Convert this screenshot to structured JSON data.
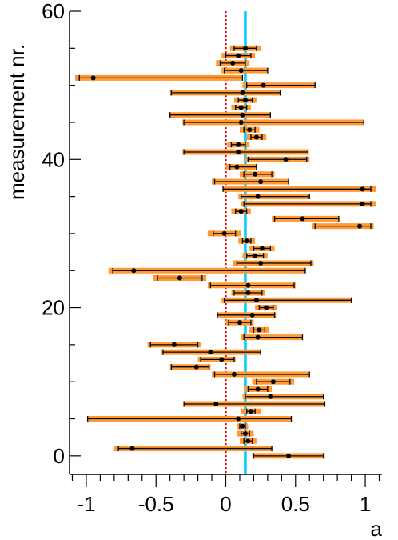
{
  "chart_data": {
    "type": "scatter",
    "title": "",
    "xlabel": "a",
    "ylabel": "measurement nr.",
    "xlim": [
      -1.12,
      1.12
    ],
    "ylim": [
      -2.5,
      60
    ],
    "x_ticks": [
      -1,
      -0.5,
      0,
      0.5,
      1
    ],
    "x_tick_labels": [
      "-1",
      "-0.5",
      "0",
      "0.5",
      "1"
    ],
    "y_ticks": [
      0,
      20,
      40,
      60
    ],
    "y_tick_labels": [
      "0",
      "20",
      "40",
      "60"
    ],
    "grid": false,
    "legend": "none",
    "reference_lines": [
      {
        "x": 0,
        "style": "dotted",
        "color": "#e00000"
      },
      {
        "x": 0.14,
        "width_data": 0.02,
        "color": "#00ccff"
      }
    ],
    "colors": {
      "stat_error": "#000000",
      "syst_error": "#ff9933",
      "marker": "#000000"
    },
    "measurements": [
      {
        "n": 0,
        "y": 0.45,
        "stat_lo": 0.25,
        "stat_hi": 0.25,
        "syst_lo": 0.26,
        "syst_hi": 0.26
      },
      {
        "n": 1,
        "y": -0.67,
        "stat_lo": 0.1,
        "stat_hi": 1.0,
        "syst_lo": 0.13,
        "syst_hi": 1.0
      },
      {
        "n": 2,
        "y": 0.16,
        "stat_lo": 0.03,
        "stat_hi": 0.03,
        "syst_lo": 0.06,
        "syst_hi": 0.06
      },
      {
        "n": 3,
        "y": 0.14,
        "stat_lo": 0.03,
        "stat_hi": 0.03,
        "syst_lo": 0.06,
        "syst_hi": 0.06
      },
      {
        "n": 4,
        "y": 0.12,
        "stat_lo": 0.02,
        "stat_hi": 0.02,
        "syst_lo": 0.04,
        "syst_hi": 0.04
      },
      {
        "n": 5,
        "y": 0.09,
        "stat_lo": 1.08,
        "stat_hi": 0.38,
        "syst_lo": 1.08,
        "syst_hi": 0.38
      },
      {
        "n": 6,
        "y": 0.18,
        "stat_lo": 0.03,
        "stat_hi": 0.03,
        "syst_lo": 0.07,
        "syst_hi": 0.07
      },
      {
        "n": 7,
        "y": -0.07,
        "stat_lo": 0.23,
        "stat_hi": 0.78,
        "syst_lo": 0.23,
        "syst_hi": 0.78
      },
      {
        "n": 8,
        "y": 0.32,
        "stat_lo": 0.18,
        "stat_hi": 0.38,
        "syst_lo": 0.2,
        "syst_hi": 0.38
      },
      {
        "n": 9,
        "y": 0.23,
        "stat_lo": 0.07,
        "stat_hi": 0.07,
        "syst_lo": 0.1,
        "syst_hi": 0.1
      },
      {
        "n": 10,
        "y": 0.34,
        "stat_lo": 0.12,
        "stat_hi": 0.12,
        "syst_lo": 0.15,
        "syst_hi": 0.15
      },
      {
        "n": 11,
        "y": 0.06,
        "stat_lo": 0.14,
        "stat_hi": 0.54,
        "syst_lo": 0.16,
        "syst_hi": 0.54
      },
      {
        "n": 12,
        "y": -0.21,
        "stat_lo": 0.18,
        "stat_hi": 0.09,
        "syst_lo": 0.19,
        "syst_hi": 0.1
      },
      {
        "n": 13,
        "y": -0.03,
        "stat_lo": 0.15,
        "stat_hi": 0.09,
        "syst_lo": 0.17,
        "syst_hi": 0.1
      },
      {
        "n": 14,
        "y": -0.11,
        "stat_lo": 0.34,
        "stat_hi": 0.36,
        "syst_lo": 0.35,
        "syst_hi": 0.36
      },
      {
        "n": 15,
        "y": -0.37,
        "stat_lo": 0.17,
        "stat_hi": 0.17,
        "syst_lo": 0.19,
        "syst_hi": 0.19
      },
      {
        "n": 16,
        "y": 0.23,
        "stat_lo": 0.1,
        "stat_hi": 0.32,
        "syst_lo": 0.12,
        "syst_hi": 0.32
      },
      {
        "n": 17,
        "y": 0.24,
        "stat_lo": 0.04,
        "stat_hi": 0.04,
        "syst_lo": 0.07,
        "syst_hi": 0.07
      },
      {
        "n": 18,
        "y": 0.1,
        "stat_lo": 0.08,
        "stat_hi": 0.08,
        "syst_lo": 0.1,
        "syst_hi": 0.1
      },
      {
        "n": 19,
        "y": 0.19,
        "stat_lo": 0.25,
        "stat_hi": 0.16,
        "syst_lo": 0.25,
        "syst_hi": 0.17
      },
      {
        "n": 20,
        "y": 0.29,
        "stat_lo": 0.05,
        "stat_hi": 0.05,
        "syst_lo": 0.08,
        "syst_hi": 0.08
      },
      {
        "n": 21,
        "y": 0.22,
        "stat_lo": 0.23,
        "stat_hi": 0.68,
        "syst_lo": 0.25,
        "syst_hi": 0.68
      },
      {
        "n": 22,
        "y": 0.16,
        "stat_lo": 0.1,
        "stat_hi": 0.1,
        "syst_lo": 0.12,
        "syst_hi": 0.12
      },
      {
        "n": 23,
        "y": 0.16,
        "stat_lo": 0.27,
        "stat_hi": 0.33,
        "syst_lo": 0.29,
        "syst_hi": 0.34
      },
      {
        "n": 24,
        "y": -0.33,
        "stat_lo": 0.16,
        "stat_hi": 0.16,
        "syst_lo": 0.19,
        "syst_hi": 0.19
      },
      {
        "n": 25,
        "y": -0.66,
        "stat_lo": 0.15,
        "stat_hi": 1.23,
        "syst_lo": 0.18,
        "syst_hi": 1.23
      },
      {
        "n": 26,
        "y": 0.25,
        "stat_lo": 0.17,
        "stat_hi": 0.36,
        "syst_lo": 0.2,
        "syst_hi": 0.38
      },
      {
        "n": 27,
        "y": 0.21,
        "stat_lo": 0.06,
        "stat_hi": 0.06,
        "syst_lo": 0.09,
        "syst_hi": 0.09
      },
      {
        "n": 28,
        "y": 0.26,
        "stat_lo": 0.06,
        "stat_hi": 0.06,
        "syst_lo": 0.09,
        "syst_hi": 0.09
      },
      {
        "n": 29,
        "y": 0.15,
        "stat_lo": 0.03,
        "stat_hi": 0.03,
        "syst_lo": 0.06,
        "syst_hi": 0.06
      },
      {
        "n": 30,
        "y": -0.01,
        "stat_lo": 0.08,
        "stat_hi": 0.08,
        "syst_lo": 0.12,
        "syst_hi": 0.12
      },
      {
        "n": 31,
        "y": 0.96,
        "stat_lo": 0.32,
        "stat_hi": 0.08,
        "syst_lo": 0.34,
        "syst_hi": 0.1
      },
      {
        "n": 32,
        "y": 0.55,
        "stat_lo": 0.2,
        "stat_hi": 0.26,
        "syst_lo": 0.22,
        "syst_hi": 0.26
      },
      {
        "n": 33,
        "y": 0.11,
        "stat_lo": 0.04,
        "stat_hi": 0.04,
        "syst_lo": 0.07,
        "syst_hi": 0.07
      },
      {
        "n": 34,
        "y": 0.98,
        "stat_lo": 0.85,
        "stat_hi": 0.06,
        "syst_lo": 0.87,
        "syst_hi": 0.1
      },
      {
        "n": 35,
        "y": 0.23,
        "stat_lo": 0.12,
        "stat_hi": 0.37,
        "syst_lo": 0.14,
        "syst_hi": 0.37
      },
      {
        "n": 36,
        "y": 0.98,
        "stat_lo": 1.0,
        "stat_hi": 0.06,
        "syst_lo": 1.0,
        "syst_hi": 0.1
      },
      {
        "n": 37,
        "y": 0.25,
        "stat_lo": 0.33,
        "stat_hi": 0.2,
        "syst_lo": 0.35,
        "syst_hi": 0.2
      },
      {
        "n": 38,
        "y": 0.21,
        "stat_lo": 0.08,
        "stat_hi": 0.12,
        "syst_lo": 0.11,
        "syst_hi": 0.14
      },
      {
        "n": 39,
        "y": 0.08,
        "stat_lo": 0.05,
        "stat_hi": 0.14,
        "syst_lo": 0.08,
        "syst_hi": 0.14
      },
      {
        "n": 40,
        "y": 0.43,
        "stat_lo": 0.27,
        "stat_hi": 0.15,
        "syst_lo": 0.29,
        "syst_hi": 0.17
      },
      {
        "n": 41,
        "y": 0.09,
        "stat_lo": 0.39,
        "stat_hi": 0.5,
        "syst_lo": 0.4,
        "syst_hi": 0.5
      },
      {
        "n": 42,
        "y": 0.09,
        "stat_lo": 0.05,
        "stat_hi": 0.05,
        "syst_lo": 0.08,
        "syst_hi": 0.08
      },
      {
        "n": 43,
        "y": 0.22,
        "stat_lo": 0.04,
        "stat_hi": 0.04,
        "syst_lo": 0.07,
        "syst_hi": 0.07
      },
      {
        "n": 44,
        "y": 0.17,
        "stat_lo": 0.04,
        "stat_hi": 0.04,
        "syst_lo": 0.07,
        "syst_hi": 0.07
      },
      {
        "n": 45,
        "y": 0.11,
        "stat_lo": 0.41,
        "stat_hi": 0.88,
        "syst_lo": 0.42,
        "syst_hi": 0.88
      },
      {
        "n": 46,
        "y": 0.12,
        "stat_lo": 0.52,
        "stat_hi": 0.2,
        "syst_lo": 0.53,
        "syst_hi": 0.2
      },
      {
        "n": 47,
        "y": 0.11,
        "stat_lo": 0.04,
        "stat_hi": 0.04,
        "syst_lo": 0.07,
        "syst_hi": 0.07
      },
      {
        "n": 48,
        "y": 0.14,
        "stat_lo": 0.05,
        "stat_hi": 0.05,
        "syst_lo": 0.08,
        "syst_hi": 0.08
      },
      {
        "n": 49,
        "y": 0.12,
        "stat_lo": 0.51,
        "stat_hi": 0.27,
        "syst_lo": 0.52,
        "syst_hi": 0.27
      },
      {
        "n": 50,
        "y": 0.27,
        "stat_lo": 0.12,
        "stat_hi": 0.37,
        "syst_lo": 0.15,
        "syst_hi": 0.37
      },
      {
        "n": 51,
        "y": -0.95,
        "stat_lo": 0.1,
        "stat_hi": 1.07,
        "syst_lo": 0.13,
        "syst_hi": 1.07
      },
      {
        "n": 52,
        "y": 0.11,
        "stat_lo": 0.12,
        "stat_hi": 0.19,
        "syst_lo": 0.14,
        "syst_hi": 0.19
      },
      {
        "n": 53,
        "y": 0.05,
        "stat_lo": 0.09,
        "stat_hi": 0.09,
        "syst_lo": 0.12,
        "syst_hi": 0.12
      },
      {
        "n": 54,
        "y": 0.09,
        "stat_lo": 0.09,
        "stat_hi": 0.09,
        "syst_lo": 0.12,
        "syst_hi": 0.12
      },
      {
        "n": 55,
        "y": 0.14,
        "stat_lo": 0.08,
        "stat_hi": 0.08,
        "syst_lo": 0.11,
        "syst_hi": 0.11
      }
    ]
  }
}
